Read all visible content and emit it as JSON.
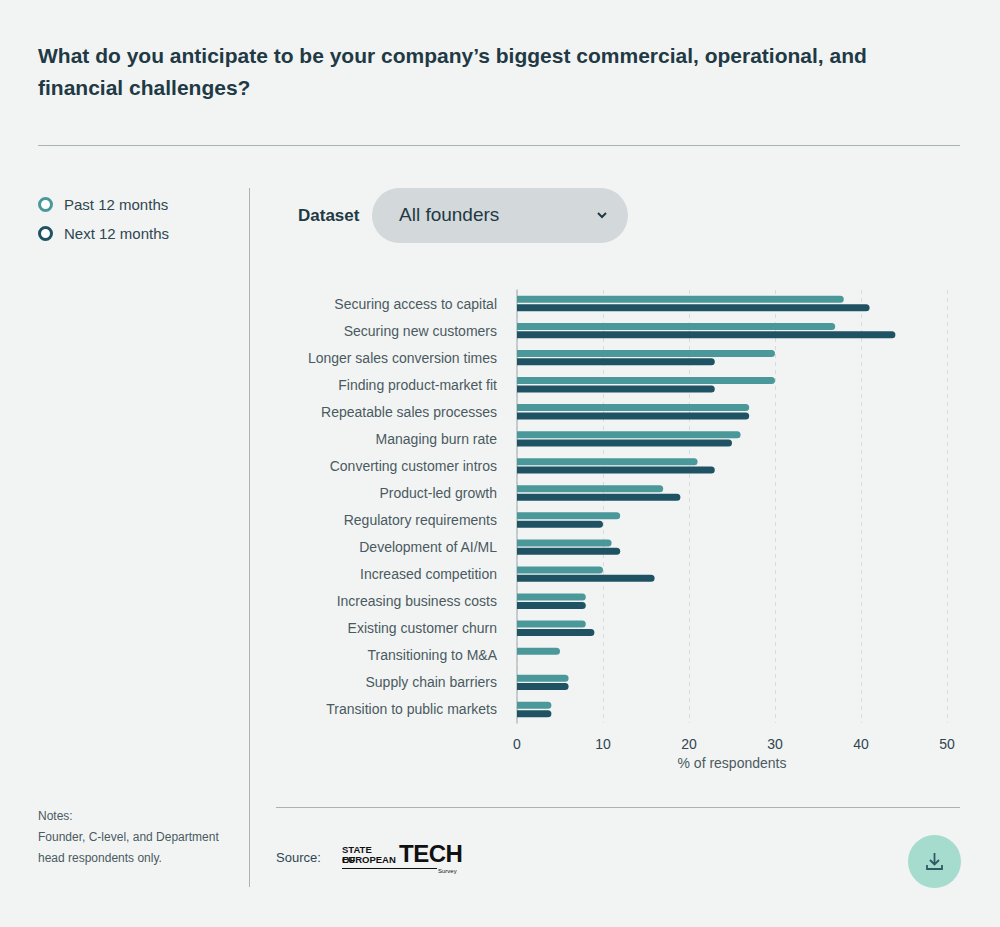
{
  "chart_data": {
    "type": "bar",
    "orientation": "horizontal",
    "title": "What do you anticipate to be your company’s biggest commercial, operational, and financial challenges?",
    "categories": [
      "Securing access to capital",
      "Securing new customers",
      "Longer sales conversion times",
      "Finding product-market fit",
      "Repeatable sales processes",
      "Managing burn rate",
      "Converting customer intros",
      "Product-led growth",
      "Regulatory requirements",
      "Development of AI/ML",
      "Increased competition",
      "Increasing business costs",
      "Existing customer churn",
      "Transitioning to M&A",
      "Supply chain barriers",
      "Transition to public markets"
    ],
    "series": [
      {
        "name": "Past 12 months",
        "color": "#4a989a",
        "values": [
          38,
          37,
          30,
          30,
          27,
          26,
          21,
          17,
          12,
          11,
          10,
          8,
          8,
          5,
          6,
          4
        ]
      },
      {
        "name": "Next 12 months",
        "color": "#1f5363",
        "values": [
          41,
          44,
          23,
          23,
          27,
          25,
          23,
          19,
          10,
          12,
          16,
          8,
          9,
          0,
          6,
          4
        ]
      }
    ],
    "x_label": "% of respondents",
    "xlim": [
      0,
      50
    ],
    "xticks": [
      0,
      10,
      20,
      30,
      40,
      50
    ],
    "grid": true,
    "legend": "left"
  },
  "page": {
    "dataset_label": "Dataset",
    "dataset_value": "All founders",
    "notes_title": "Notes:",
    "notes": "Founder, C-level, and Department head respondents only.",
    "source_label": "Source:",
    "source_logo": {
      "line1": "STATE OF",
      "line2": "EUROPEAN",
      "big": "TECH",
      "small": "Survey"
    }
  }
}
